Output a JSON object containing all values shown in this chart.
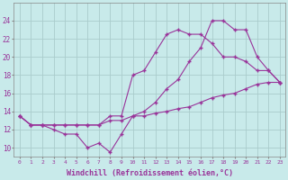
{
  "background_color": "#c8eaea",
  "grid_color": "#aacccc",
  "line_color": "#993399",
  "xlabel": "Windchill (Refroidissement éolien,°C)",
  "xlabel_fontsize": 6.0,
  "yticks": [
    10,
    12,
    14,
    16,
    18,
    20,
    22,
    24
  ],
  "xticks": [
    0,
    1,
    2,
    3,
    4,
    5,
    6,
    7,
    8,
    9,
    10,
    11,
    12,
    13,
    14,
    15,
    16,
    17,
    18,
    19,
    20,
    21,
    22,
    23
  ],
  "xlim": [
    -0.5,
    23.5
  ],
  "ylim": [
    9.0,
    26.0
  ],
  "line1_x": [
    0,
    1,
    2,
    3,
    4,
    5,
    6,
    7,
    8,
    9,
    10,
    11,
    12,
    13,
    14,
    15,
    16,
    17,
    18,
    19,
    20,
    21,
    22,
    23
  ],
  "line1_y": [
    13.5,
    12.5,
    12.5,
    12.0,
    11.5,
    11.5,
    10.0,
    10.5,
    9.5,
    11.5,
    13.5,
    13.5,
    13.8,
    14.0,
    14.3,
    14.5,
    15.0,
    15.5,
    15.8,
    16.0,
    16.5,
    17.0,
    17.2,
    17.2
  ],
  "line2_x": [
    0,
    1,
    2,
    3,
    4,
    5,
    6,
    7,
    8,
    9,
    10,
    11,
    12,
    13,
    14,
    15,
    16,
    17,
    18,
    19,
    20,
    21,
    22,
    23
  ],
  "line2_y": [
    13.5,
    12.5,
    12.5,
    12.5,
    12.5,
    12.5,
    12.5,
    12.5,
    13.5,
    13.5,
    18.0,
    18.5,
    20.5,
    22.5,
    23.0,
    22.5,
    22.5,
    21.5,
    20.0,
    20.0,
    19.5,
    18.5,
    18.5,
    17.2
  ],
  "line3_x": [
    0,
    1,
    2,
    3,
    4,
    5,
    6,
    7,
    8,
    9,
    10,
    11,
    12,
    13,
    14,
    15,
    16,
    17,
    18,
    19,
    20,
    21,
    22,
    23
  ],
  "line3_y": [
    13.5,
    12.5,
    12.5,
    12.5,
    12.5,
    12.5,
    12.5,
    12.5,
    13.0,
    13.0,
    13.5,
    14.0,
    15.0,
    16.5,
    17.5,
    19.5,
    21.0,
    24.0,
    24.0,
    23.0,
    23.0,
    20.0,
    18.5,
    17.2
  ]
}
